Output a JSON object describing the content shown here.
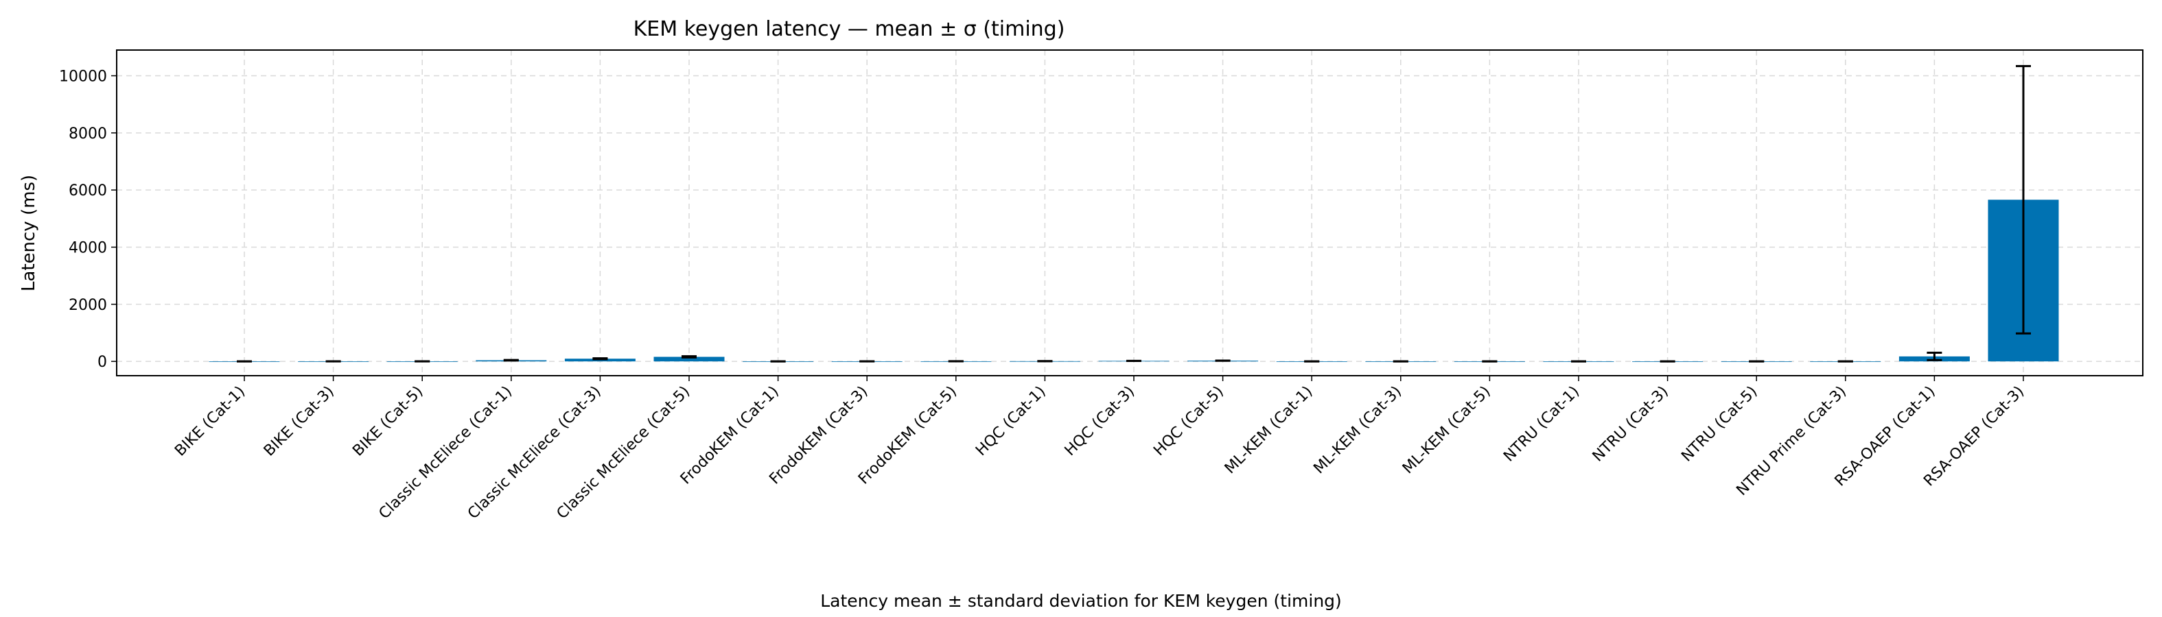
{
  "chart_data": {
    "type": "bar",
    "title": "KEM keygen latency — mean ± σ (timing)",
    "xlabel": "",
    "ylabel": "Latency (ms)",
    "caption": "Latency mean ± standard deviation for KEM keygen (timing)",
    "ylim": [
      -500,
      10900
    ],
    "yticks": [
      0,
      2000,
      4000,
      6000,
      8000,
      10000
    ],
    "grid": true,
    "bar_color": "#0072b2",
    "categories": [
      "BIKE (Cat-1)",
      "BIKE (Cat-3)",
      "BIKE (Cat-5)",
      "Classic McEliece (Cat-1)",
      "Classic McEliece (Cat-3)",
      "Classic McEliece (Cat-5)",
      "FrodoKEM (Cat-1)",
      "FrodoKEM (Cat-3)",
      "FrodoKEM (Cat-5)",
      "HQC (Cat-1)",
      "HQC (Cat-3)",
      "HQC (Cat-5)",
      "ML-KEM (Cat-1)",
      "ML-KEM (Cat-3)",
      "ML-KEM (Cat-5)",
      "NTRU (Cat-1)",
      "NTRU (Cat-3)",
      "NTRU (Cat-5)",
      "NTRU Prime (Cat-3)",
      "RSA-OAEP (Cat-1)",
      "RSA-OAEP (Cat-3)"
    ],
    "values": [
      1,
      2,
      3,
      40,
      95,
      160,
      2,
      3,
      5,
      8,
      18,
      25,
      0.5,
      0.7,
      1,
      1,
      1,
      1.5,
      2,
      175,
      5660
    ],
    "errors": [
      0.5,
      1,
      1.5,
      8,
      15,
      20,
      0.5,
      0.5,
      1,
      1,
      2,
      3,
      0.1,
      0.1,
      0.2,
      0.3,
      0.3,
      0.4,
      0.5,
      130,
      4680
    ]
  }
}
